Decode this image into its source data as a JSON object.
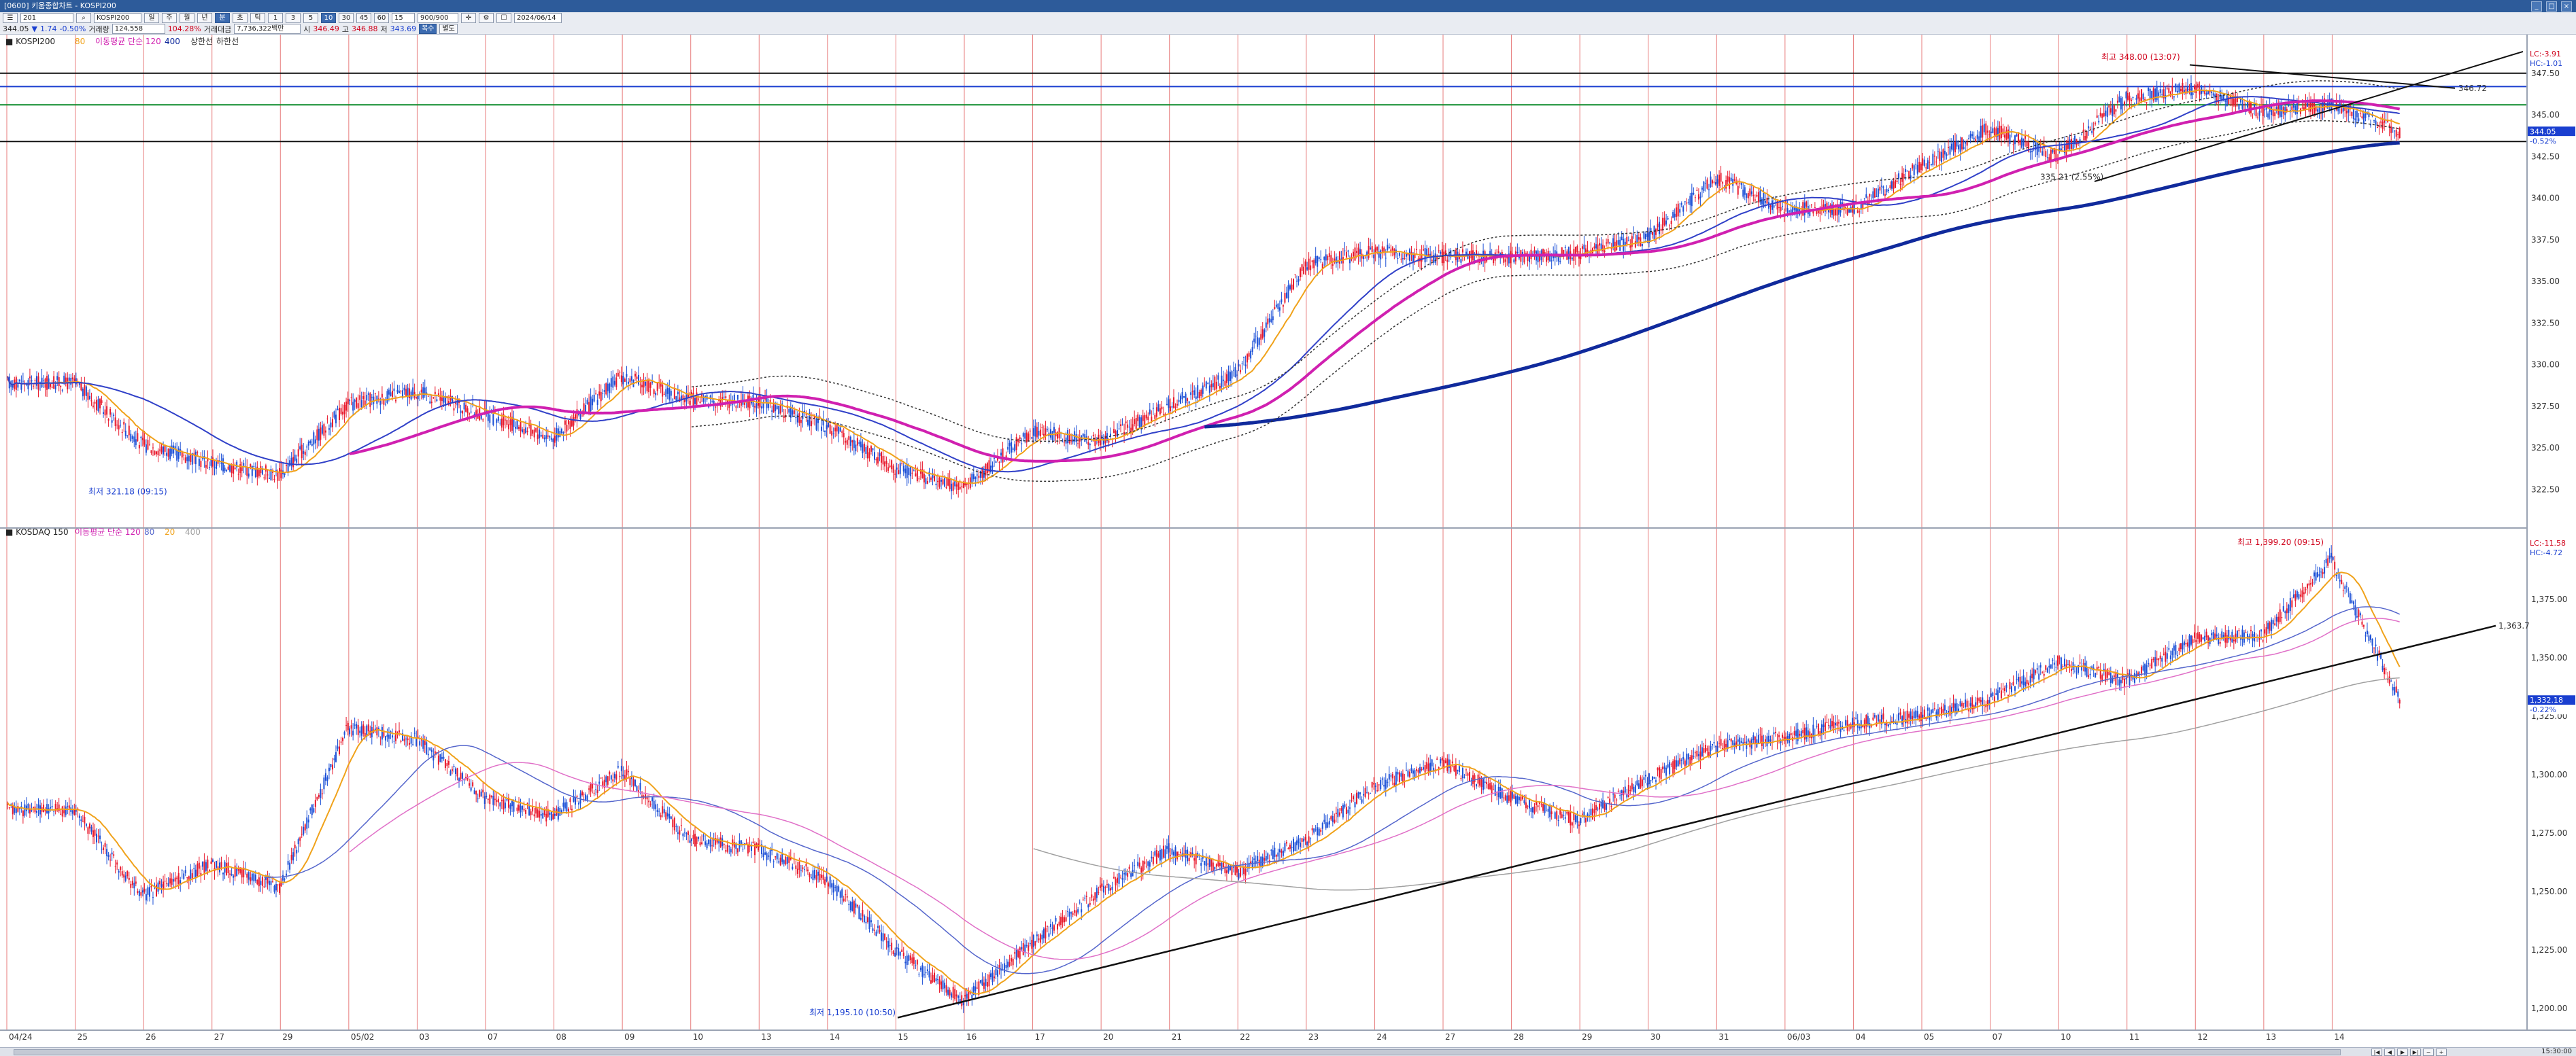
{
  "window": {
    "title": "[0600] 키움종합차트 - KOSPI200",
    "controls": [
      "_",
      "□",
      "×"
    ]
  },
  "toolbar": {
    "symbol_code": "201",
    "symbol_name": "KOSPI200",
    "periods": [
      "일",
      "주",
      "월",
      "년",
      "분",
      "초",
      "틱"
    ],
    "selected_period": "분",
    "minute_values": [
      "1",
      "3",
      "5",
      "10",
      "30",
      "45",
      "60"
    ],
    "selected_minute": "10",
    "count_value": "15",
    "range_value": "900/900",
    "date_value": "2024/06/14",
    "price": "344.05",
    "change_arrow": "▼",
    "change": "1.74",
    "change_pct": "-0.50%",
    "volume_label": "거래량",
    "volume": "124,558",
    "volume_change": "104.28%",
    "amount_label": "거래대금",
    "amount": "7,736,322백만",
    "open_label": "시",
    "open": "346.49",
    "high_label": "고",
    "high": "346.88",
    "low_label": "저",
    "low": "343.69",
    "tab_active": "복수",
    "tab_inactive": "별도"
  },
  "upper_panel": {
    "label": "KOSPI200",
    "legend": [
      "80",
      "이동평균 단순 120",
      "400",
      "상한선",
      "하한선"
    ],
    "price_ticks": [
      "347.50",
      "345.00",
      "342.50",
      "340.00",
      "337.50",
      "335.00",
      "332.50",
      "330.00",
      "327.50",
      "325.00",
      "322.50"
    ],
    "right_badges": {
      "lc": "LC:-3.91",
      "hc": "HC:-1.01",
      "last": "344.05",
      "last_pct": "-0.52%"
    },
    "annotation_high": "최고 348.00 (13:07)",
    "annotation_low": "최저 321.18 (09:15)",
    "annotation_mid": "335.21 (2.55%)",
    "hline_label": "346.72"
  },
  "lower_panel": {
    "label": "KOSDAQ 150",
    "legend": [
      "이동평균 단순 120",
      "80",
      "20",
      "400"
    ],
    "price_ticks": [
      "1,375.00",
      "1,350.00",
      "1,325.00",
      "1,300.00",
      "1,275.00",
      "1,250.00",
      "1,225.00",
      "1,200.00"
    ],
    "right_badges": {
      "lc": "LC:-11.58",
      "hc": "HC:-4.72",
      "last": "1,332.18",
      "last_pct": "-0.22%"
    },
    "annotation_high": "최고 1,399.20 (09:15)",
    "annotation_low": "최저 1,195.10 (10:50)",
    "trend_label": "1,363.7"
  },
  "date_axis": [
    "04/24",
    "25",
    "26",
    "27",
    "29",
    "05/02",
    "03",
    "07",
    "08",
    "09",
    "10",
    "13",
    "14",
    "15",
    "16",
    "17",
    "20",
    "21",
    "22",
    "23",
    "24",
    "27",
    "28",
    "29",
    "30",
    "31",
    "06/03",
    "04",
    "05",
    "07",
    "10",
    "11",
    "12",
    "13",
    "14"
  ],
  "footer": {
    "time": "15:30:00"
  },
  "colors": {
    "titlebar": "#2d5b9a",
    "candle_up": "#e8192c",
    "candle_down": "#1b4fd6",
    "ma_orange": "#f0a21a",
    "ma_blue": "#3040c8",
    "ma_magenta": "#d020b0",
    "ma_navy": "#102a9c",
    "day_separator": "#e05050"
  },
  "chart_data": [
    {
      "type": "candlestick",
      "title": "KOSPI200",
      "ylim": [
        321,
        349
      ],
      "x": [
        "04/24",
        "25",
        "26",
        "27",
        "29",
        "05/02",
        "03",
        "07",
        "08",
        "09",
        "10",
        "13",
        "14",
        "15",
        "16",
        "17",
        "20",
        "21",
        "22",
        "23",
        "24",
        "27",
        "28",
        "29",
        "30",
        "31",
        "06/03",
        "04",
        "05",
        "07",
        "10",
        "11",
        "12",
        "13",
        "14"
      ],
      "close": [
        328.9,
        325.2,
        324.1,
        323.4,
        327.6,
        328.4,
        327.0,
        325.6,
        329.3,
        327.9,
        327.8,
        326.3,
        323.8,
        322.6,
        326.0,
        325.4,
        327.5,
        329.5,
        336.0,
        336.8,
        336.5,
        336.4,
        336.7,
        337.6,
        341.2,
        339.4,
        339.3,
        341.9,
        344.2,
        342.5,
        346.0,
        346.6,
        345.2,
        345.6,
        344.05
      ],
      "series": [
        {
          "name": "80",
          "color": "#f0a21a"
        },
        {
          "name": "120",
          "color": "#3040c8"
        },
        {
          "name": "400",
          "color": "#102a9c"
        }
      ]
    },
    {
      "type": "candlestick",
      "title": "KOSDAQ 150",
      "ylim": [
        1195,
        1400
      ],
      "x": [
        "04/24",
        "25",
        "26",
        "27",
        "29",
        "05/02",
        "03",
        "07",
        "08",
        "09",
        "10",
        "13",
        "14",
        "15",
        "16",
        "17",
        "20",
        "21",
        "22",
        "23",
        "24",
        "27",
        "28",
        "29",
        "30",
        "31",
        "06/03",
        "04",
        "05",
        "07",
        "10",
        "11",
        "12",
        "13",
        "14"
      ],
      "close": [
        1285,
        1248,
        1262,
        1252,
        1320,
        1315,
        1290,
        1282,
        1302,
        1272,
        1268,
        1255,
        1225,
        1203,
        1228,
        1250,
        1268,
        1258,
        1272,
        1295,
        1305,
        1290,
        1280,
        1298,
        1312,
        1316,
        1322,
        1325,
        1332,
        1348,
        1340,
        1358,
        1360,
        1392,
        1332.18
      ]
    }
  ]
}
